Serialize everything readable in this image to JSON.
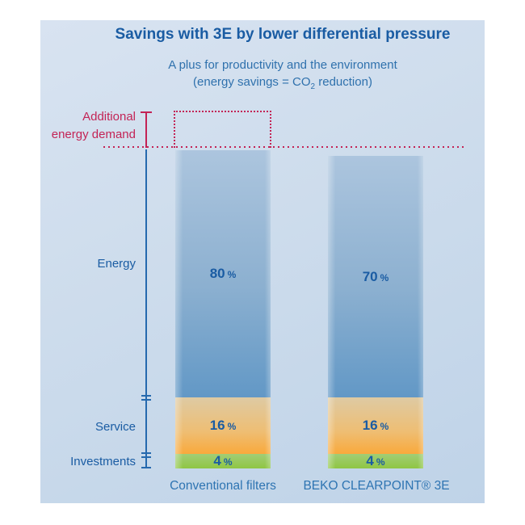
{
  "panel": {
    "title": "Savings with 3E by lower differential pressure",
    "subtitle_line1": "A plus for productivity and the environment",
    "subtitle_line2_prefix": "(energy savings = CO",
    "subtitle_line2_sub": "2",
    "subtitle_line2_suffix": " reduction)"
  },
  "axis_labels": {
    "additional_line1": "Additional",
    "additional_line2": "energy demand",
    "energy": "Energy",
    "service": "Service",
    "investments": "Investments"
  },
  "bars": [
    {
      "category": "Conventional filters",
      "energy_value": "80",
      "service_value": "16",
      "invest_value": "4",
      "unit": "%"
    },
    {
      "category": "BEKO CLEARPOINT® 3E",
      "energy_value": "70",
      "service_value": "16",
      "invest_value": "4",
      "unit": "%"
    }
  ],
  "chart_data": {
    "type": "bar",
    "stacked": true,
    "title": "Savings with 3E by lower differential pressure",
    "subtitle": "A plus for productivity and the environment (energy savings = CO2 reduction)",
    "categories": [
      "Conventional filters",
      "BEKO CLEARPOINT® 3E"
    ],
    "series": [
      {
        "name": "Energy",
        "values": [
          80,
          70
        ]
      },
      {
        "name": "Service",
        "values": [
          16,
          16
        ]
      },
      {
        "name": "Investments",
        "values": [
          4,
          4
        ]
      }
    ],
    "unit": "%",
    "annotations": [
      "Additional energy demand: dotted red outline above the Conventional filters bar, with a dotted red reference line extending across both bars at the top of the Conventional filters bar"
    ],
    "legend_position": "left-axis-brackets",
    "grid": false,
    "ylim": [
      0,
      110
    ]
  },
  "colors": {
    "panel_background": "#cddcec",
    "title_blue": "#1a5ca3",
    "subtitle_blue": "#2f71ad",
    "annotation_red": "#c32355",
    "axis_blue": "#2569ae",
    "energy_segment_top": "#acc5de",
    "energy_segment_bottom": "#6298c6",
    "service_segment_top": "#decaa3",
    "service_segment_bottom": "#f9a93c",
    "investments_segment_top": "#a2cd76",
    "investments_segment_bottom": "#8fc643",
    "caption_blue": "#2e74b2"
  }
}
